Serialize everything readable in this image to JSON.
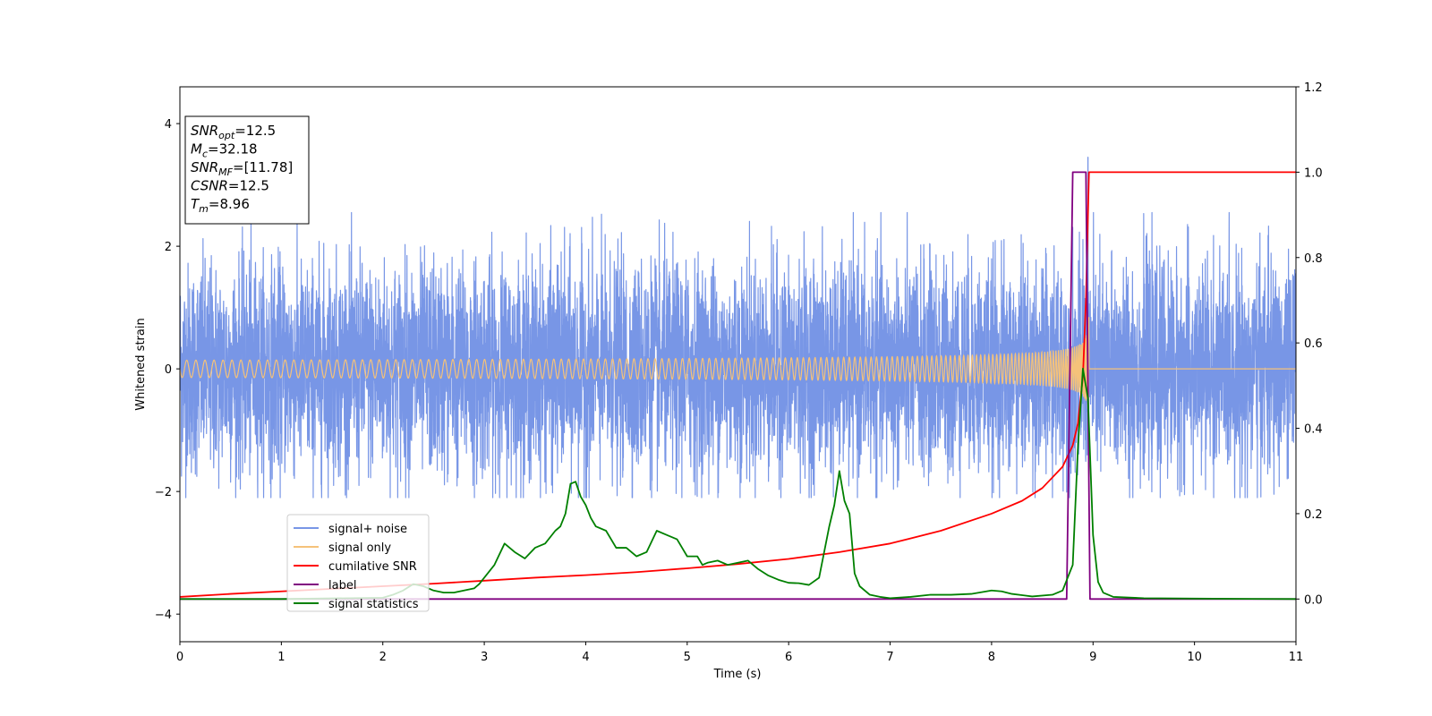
{
  "chart_data": {
    "type": "line",
    "xlabel": "Time (s)",
    "ylabel": "Whitened strain",
    "xlim": [
      0,
      11
    ],
    "ylim": [
      -4.45,
      4.6
    ],
    "y2lim": [
      -0.1,
      1.2
    ],
    "x_ticks": [
      "0",
      "1",
      "2",
      "3",
      "4",
      "5",
      "6",
      "7",
      "8",
      "9",
      "10",
      "11"
    ],
    "y_ticks": [
      "4",
      "2",
      "0",
      "−2",
      "−4"
    ],
    "y_tick_values": [
      4,
      2,
      0,
      -2,
      -4
    ],
    "y2_ticks": [
      "1.2",
      "1.0",
      "0.8",
      "0.6",
      "0.4",
      "0.2",
      "0.0"
    ],
    "y2_tick_values": [
      1.2,
      1.0,
      0.8,
      0.6,
      0.4,
      0.2,
      0.0
    ],
    "grid": false,
    "legend_position": "lower-left",
    "annotation": {
      "lines": [
        {
          "main": "SNR",
          "sub": "opt",
          "value": "=12.5"
        },
        {
          "main": "M",
          "sub": "c",
          "value": "=32.18"
        },
        {
          "main": "SNR",
          "sub": "MF",
          "value": "=[11.78]"
        },
        {
          "main": "CSNR",
          "sub": "",
          "value": "=12.5"
        },
        {
          "main": "T",
          "sub": "m",
          "value": "=8.96"
        }
      ]
    },
    "series": [
      {
        "name": "signal+ noise",
        "axis": "left",
        "color": "#7896e6",
        "kind": "noise",
        "amplitude_sigma": 0.85,
        "range": [
          -2.1,
          2.55
        ],
        "spike": {
          "x": 8.95,
          "y": 3.45
        }
      },
      {
        "name": "signal only",
        "axis": "left",
        "color": "#f5c27a",
        "kind": "chirp",
        "merger_time": 8.96,
        "peak_amplitude": 0.9
      },
      {
        "name": "cumilative SNR",
        "axis": "right",
        "color": "#ff0000",
        "x": [
          0,
          0.5,
          1,
          1.5,
          2,
          2.5,
          3,
          3.5,
          4,
          4.5,
          5,
          5.5,
          6,
          6.5,
          7,
          7.5,
          8,
          8.3,
          8.5,
          8.7,
          8.8,
          8.85,
          8.9,
          8.93,
          8.96,
          9.0,
          10,
          11
        ],
        "y": [
          0.005,
          0.012,
          0.018,
          0.024,
          0.03,
          0.036,
          0.043,
          0.05,
          0.056,
          0.063,
          0.072,
          0.082,
          0.094,
          0.11,
          0.13,
          0.16,
          0.2,
          0.23,
          0.26,
          0.31,
          0.36,
          0.41,
          0.52,
          0.7,
          1.0,
          1.0,
          1.0,
          1.0
        ]
      },
      {
        "name": "label",
        "axis": "right",
        "color": "#800080",
        "x": [
          0,
          8.74,
          8.8,
          8.93,
          8.97,
          11
        ],
        "y": [
          0,
          0,
          1,
          1,
          0,
          0
        ]
      },
      {
        "name": "signal statistics",
        "axis": "right",
        "color": "#008000",
        "x": [
          0,
          1,
          2,
          2.1,
          2.2,
          2.3,
          2.4,
          2.5,
          2.6,
          2.7,
          2.8,
          2.9,
          2.95,
          3.0,
          3.1,
          3.2,
          3.3,
          3.4,
          3.5,
          3.6,
          3.7,
          3.75,
          3.8,
          3.85,
          3.9,
          3.95,
          4.0,
          4.05,
          4.1,
          4.2,
          4.3,
          4.4,
          4.5,
          4.6,
          4.7,
          4.8,
          4.9,
          5.0,
          5.1,
          5.15,
          5.2,
          5.3,
          5.4,
          5.5,
          5.6,
          5.7,
          5.8,
          5.9,
          6.0,
          6.1,
          6.2,
          6.3,
          6.4,
          6.45,
          6.5,
          6.55,
          6.6,
          6.65,
          6.7,
          6.8,
          6.9,
          7.0,
          7.2,
          7.4,
          7.6,
          7.8,
          8.0,
          8.1,
          8.2,
          8.4,
          8.6,
          8.7,
          8.8,
          8.85,
          8.9,
          8.95,
          9.0,
          9.05,
          9.1,
          9.2,
          9.5,
          10,
          11
        ],
        "y": [
          0,
          0,
          0.003,
          0.01,
          0.02,
          0.035,
          0.03,
          0.02,
          0.015,
          0.015,
          0.02,
          0.025,
          0.035,
          0.05,
          0.08,
          0.13,
          0.11,
          0.095,
          0.12,
          0.13,
          0.16,
          0.17,
          0.2,
          0.27,
          0.275,
          0.24,
          0.22,
          0.19,
          0.17,
          0.16,
          0.12,
          0.12,
          0.1,
          0.11,
          0.16,
          0.15,
          0.14,
          0.1,
          0.1,
          0.08,
          0.085,
          0.09,
          0.08,
          0.085,
          0.09,
          0.07,
          0.055,
          0.045,
          0.038,
          0.037,
          0.033,
          0.05,
          0.17,
          0.22,
          0.3,
          0.23,
          0.2,
          0.06,
          0.03,
          0.01,
          0.005,
          0.002,
          0.005,
          0.01,
          0.01,
          0.012,
          0.02,
          0.018,
          0.012,
          0.006,
          0.01,
          0.02,
          0.08,
          0.35,
          0.54,
          0.47,
          0.15,
          0.04,
          0.015,
          0.005,
          0.002,
          0.001,
          0
        ]
      }
    ]
  }
}
